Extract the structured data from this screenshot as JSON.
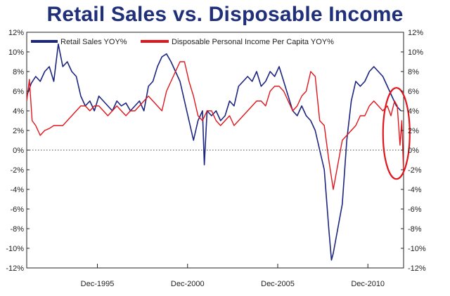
{
  "chart_data": {
    "type": "line",
    "title": "Retail Sales vs. Disposable Income",
    "xlabel": "",
    "ylabel": "",
    "ylim": [
      -12,
      12
    ],
    "yticks": [
      "12%",
      "10%",
      "8%",
      "6%",
      "4%",
      "2%",
      "0%",
      "-2%",
      "-4%",
      "-6%",
      "-8%",
      "-10%",
      "-12%"
    ],
    "yticks_right": [
      "12%",
      "10%",
      "8%",
      "6%",
      "4%",
      "2%",
      "0%",
      "-2%",
      "-4%",
      "-6%",
      "-8%",
      "-10%",
      "-12%"
    ],
    "xlim": [
      1992.0,
      2012.9
    ],
    "xticks": [
      {
        "label": "Dec-1995",
        "x": 1995.92
      },
      {
        "label": "Dec-2000",
        "x": 2000.92
      },
      {
        "label": "Dec-2005",
        "x": 2005.92
      },
      {
        "label": "Dec-2010",
        "x": 2010.92
      }
    ],
    "zero_line": true,
    "legend_position": "top-left",
    "series": [
      {
        "name": "Retail Sales YOY%",
        "color": "#1c2580",
        "x": [
          1992.0,
          1992.25,
          1992.5,
          1992.75,
          1993.0,
          1993.25,
          1993.5,
          1993.75,
          1994.0,
          1994.25,
          1994.5,
          1994.75,
          1995.0,
          1995.25,
          1995.5,
          1995.75,
          1996.0,
          1996.25,
          1996.5,
          1996.75,
          1997.0,
          1997.25,
          1997.5,
          1997.75,
          1998.0,
          1998.25,
          1998.5,
          1998.75,
          1999.0,
          1999.25,
          1999.5,
          1999.75,
          2000.0,
          2000.25,
          2000.5,
          2000.75,
          2001.0,
          2001.25,
          2001.5,
          2001.75,
          2001.85,
          2002.0,
          2002.25,
          2002.5,
          2002.75,
          2003.0,
          2003.25,
          2003.5,
          2003.75,
          2004.0,
          2004.25,
          2004.5,
          2004.75,
          2005.0,
          2005.25,
          2005.5,
          2005.75,
          2006.0,
          2006.25,
          2006.5,
          2006.75,
          2007.0,
          2007.25,
          2007.5,
          2007.75,
          2008.0,
          2008.25,
          2008.5,
          2008.75,
          2008.9,
          2009.0,
          2009.25,
          2009.5,
          2009.75,
          2010.0,
          2010.25,
          2010.5,
          2010.75,
          2011.0,
          2011.25,
          2011.5,
          2011.75,
          2012.0,
          2012.25,
          2012.5,
          2012.75
        ],
        "values": [
          5.5,
          6.8,
          7.5,
          7.0,
          8.0,
          8.5,
          7.0,
          10.8,
          8.5,
          9.0,
          8.0,
          7.5,
          5.5,
          4.5,
          5.0,
          4.0,
          5.5,
          5.0,
          4.5,
          4.0,
          5.0,
          4.5,
          4.8,
          4.0,
          4.5,
          5.0,
          4.0,
          6.5,
          7.0,
          8.5,
          9.5,
          9.8,
          9.0,
          8.0,
          7.0,
          5.0,
          3.0,
          1.0,
          3.0,
          4.0,
          -1.5,
          4.0,
          3.5,
          4.0,
          3.0,
          3.5,
          5.0,
          4.5,
          6.5,
          7.0,
          7.5,
          7.0,
          8.0,
          6.5,
          7.0,
          8.0,
          7.5,
          8.5,
          7.0,
          5.5,
          4.0,
          3.5,
          4.5,
          3.5,
          3.0,
          2.0,
          0.0,
          -2.0,
          -8.0,
          -11.2,
          -10.5,
          -8.0,
          -5.5,
          1.0,
          5.0,
          7.0,
          6.5,
          7.0,
          8.0,
          8.5,
          8.0,
          7.5,
          6.5,
          5.5,
          4.5,
          4.0
        ]
      },
      {
        "name": "Disposable Personal Income Per Capita YOY%",
        "color": "#e0161c",
        "x": [
          1992.0,
          1992.15,
          1992.3,
          1992.5,
          1992.75,
          1993.0,
          1993.25,
          1993.5,
          1993.75,
          1994.0,
          1994.25,
          1994.5,
          1994.75,
          1995.0,
          1995.25,
          1995.5,
          1995.75,
          1996.0,
          1996.25,
          1996.5,
          1996.75,
          1997.0,
          1997.25,
          1997.5,
          1997.75,
          1998.0,
          1998.25,
          1998.5,
          1998.75,
          1999.0,
          1999.25,
          1999.5,
          1999.75,
          2000.0,
          2000.25,
          2000.5,
          2000.75,
          2001.0,
          2001.25,
          2001.5,
          2001.75,
          2002.0,
          2002.25,
          2002.5,
          2002.75,
          2003.0,
          2003.25,
          2003.5,
          2003.75,
          2004.0,
          2004.25,
          2004.5,
          2004.75,
          2005.0,
          2005.25,
          2005.5,
          2005.75,
          2006.0,
          2006.25,
          2006.5,
          2006.75,
          2007.0,
          2007.25,
          2007.5,
          2007.75,
          2008.0,
          2008.25,
          2008.5,
          2008.75,
          2009.0,
          2009.25,
          2009.5,
          2009.75,
          2010.0,
          2010.25,
          2010.5,
          2010.75,
          2011.0,
          2011.25,
          2011.5,
          2011.75,
          2012.0,
          2012.2,
          2012.4,
          2012.55,
          2012.7,
          2012.8,
          2012.9
        ],
        "values": [
          5.0,
          7.2,
          3.0,
          2.5,
          1.5,
          2.0,
          2.2,
          2.5,
          2.5,
          2.5,
          3.0,
          3.5,
          4.0,
          4.5,
          4.5,
          4.0,
          4.5,
          4.5,
          4.0,
          3.5,
          4.0,
          4.5,
          4.0,
          3.5,
          4.0,
          4.0,
          4.5,
          5.0,
          5.5,
          5.0,
          4.5,
          4.0,
          6.0,
          7.0,
          8.0,
          9.0,
          9.0,
          7.0,
          5.5,
          3.5,
          3.0,
          4.0,
          4.0,
          3.0,
          2.5,
          3.0,
          3.5,
          2.5,
          3.0,
          3.5,
          4.0,
          4.5,
          5.0,
          5.0,
          4.5,
          6.0,
          6.5,
          6.5,
          6.0,
          5.0,
          4.0,
          4.5,
          5.5,
          6.0,
          8.0,
          7.5,
          3.0,
          2.5,
          -1.0,
          -4.0,
          -1.5,
          1.0,
          1.5,
          2.0,
          2.5,
          3.5,
          3.5,
          4.5,
          5.0,
          4.5,
          4.0,
          4.5,
          3.5,
          5.0,
          4.5,
          0.5,
          3.0,
          -2.2
        ]
      }
    ],
    "annotations": [
      {
        "type": "ellipse-highlight",
        "color": "#e0161c",
        "x_center": 2012.5,
        "y_center": 1.7
      }
    ]
  }
}
